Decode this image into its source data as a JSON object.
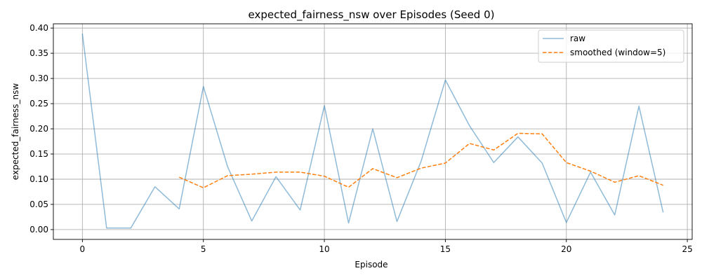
{
  "chart_data": {
    "type": "line",
    "title": "expected_fairness_nsw over Episodes (Seed 0)",
    "xlabel": "Episode",
    "ylabel": "expected_fairness_nsw",
    "xlim": [
      -1.2,
      25.2
    ],
    "ylim": [
      -0.0195,
      0.4085
    ],
    "xticks": [
      0,
      5,
      10,
      15,
      20,
      25
    ],
    "xtick_labels": [
      "0",
      "5",
      "10",
      "15",
      "20",
      "25"
    ],
    "yticks": [
      0.0,
      0.05,
      0.1,
      0.15,
      0.2,
      0.25,
      0.3,
      0.35,
      0.4
    ],
    "ytick_labels": [
      "0.00",
      "0.05",
      "0.10",
      "0.15",
      "0.20",
      "0.25",
      "0.30",
      "0.35",
      "0.40"
    ],
    "grid": true,
    "legend_position": "top-right",
    "series": [
      {
        "name": "raw",
        "color": "#1f77b4",
        "style": "solid",
        "opacity": 0.5,
        "x": [
          0,
          1,
          2,
          3,
          4,
          5,
          6,
          7,
          8,
          9,
          10,
          11,
          12,
          13,
          14,
          15,
          16,
          17,
          18,
          19,
          20,
          21,
          22,
          23,
          24
        ],
        "y": [
          0.389,
          0.003,
          0.003,
          0.085,
          0.041,
          0.284,
          0.125,
          0.017,
          0.105,
          0.039,
          0.246,
          0.013,
          0.2,
          0.016,
          0.136,
          0.297,
          0.206,
          0.133,
          0.184,
          0.132,
          0.014,
          0.114,
          0.029,
          0.245,
          0.034
        ]
      },
      {
        "name": "smoothed (window=5)",
        "color": "#ff7f0e",
        "style": "dashed",
        "opacity": 1.0,
        "x": [
          4,
          5,
          6,
          7,
          8,
          9,
          10,
          11,
          12,
          13,
          14,
          15,
          16,
          17,
          18,
          19,
          20,
          21,
          22,
          23,
          24
        ],
        "y": [
          0.104,
          0.083,
          0.107,
          0.11,
          0.114,
          0.114,
          0.106,
          0.084,
          0.121,
          0.103,
          0.122,
          0.132,
          0.171,
          0.158,
          0.191,
          0.19,
          0.133,
          0.116,
          0.094,
          0.107,
          0.088
        ]
      }
    ]
  }
}
